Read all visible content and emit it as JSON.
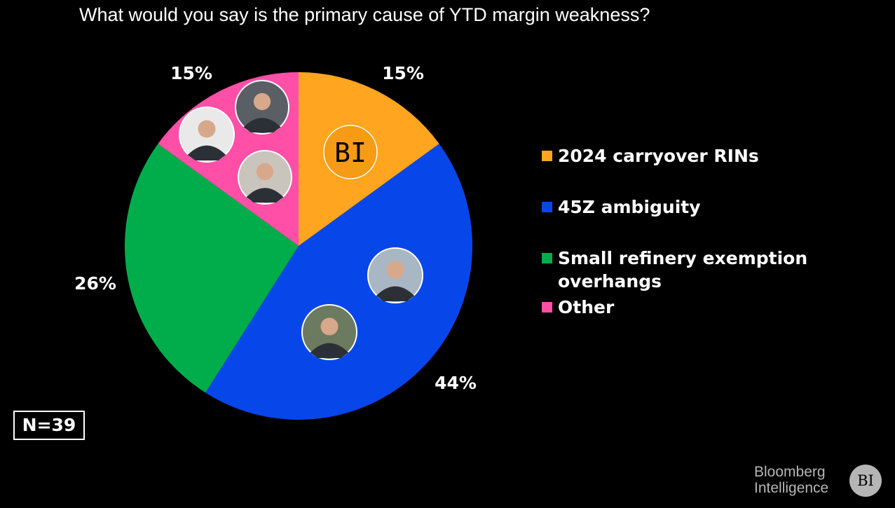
{
  "title": "What would you say is the primary cause of YTD margin weakness?",
  "chart_data": {
    "type": "pie",
    "title": "What would you say is the primary cause of YTD margin weakness?",
    "slices": [
      {
        "name": "2024 carryover RINs",
        "value": 15,
        "label": "15%",
        "color": "#ffa51f"
      },
      {
        "name": "45Z ambiguity",
        "value": 44,
        "label": "44%",
        "color": "#0747ea"
      },
      {
        "name": "Small refinery exemption overhangs",
        "value": 26,
        "label": "26%",
        "color": "#00ad4a"
      },
      {
        "name": "Other",
        "value": 15,
        "label": "15%",
        "color": "#ff4fa7"
      }
    ],
    "legend_position": "right",
    "start": "12 o'clock, clockwise"
  },
  "slice_logo": "BI",
  "sample_size": "N=39",
  "brand": {
    "line1": "Bloomberg",
    "line2": "Intelligence",
    "logo": "BI"
  }
}
